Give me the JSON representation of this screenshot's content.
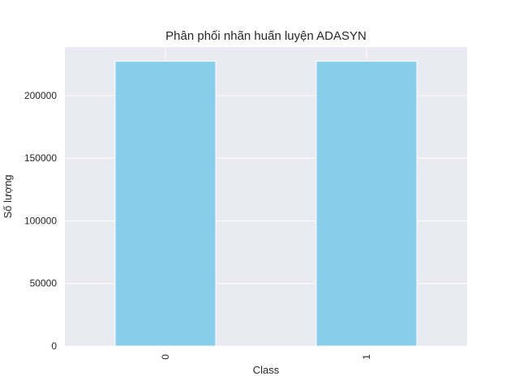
{
  "chart_data": {
    "type": "bar",
    "title": "Phân phối nhãn huấn luyện ADASYN",
    "xlabel": "Class",
    "ylabel": "Số lượng",
    "categories": [
      "0",
      "1"
    ],
    "values": [
      227451,
      227451
    ],
    "ylim": [
      0,
      238824
    ],
    "yticks": [
      0,
      50000,
      100000,
      150000,
      200000
    ],
    "ytick_labels": [
      "0",
      "50000",
      "100000",
      "150000",
      "200000"
    ],
    "grid": true,
    "legend": "none",
    "colors": {
      "bar": "#87ceeb",
      "plot_background": "#eaeaf2",
      "grid": "#ffffff",
      "text": "#262626"
    }
  }
}
